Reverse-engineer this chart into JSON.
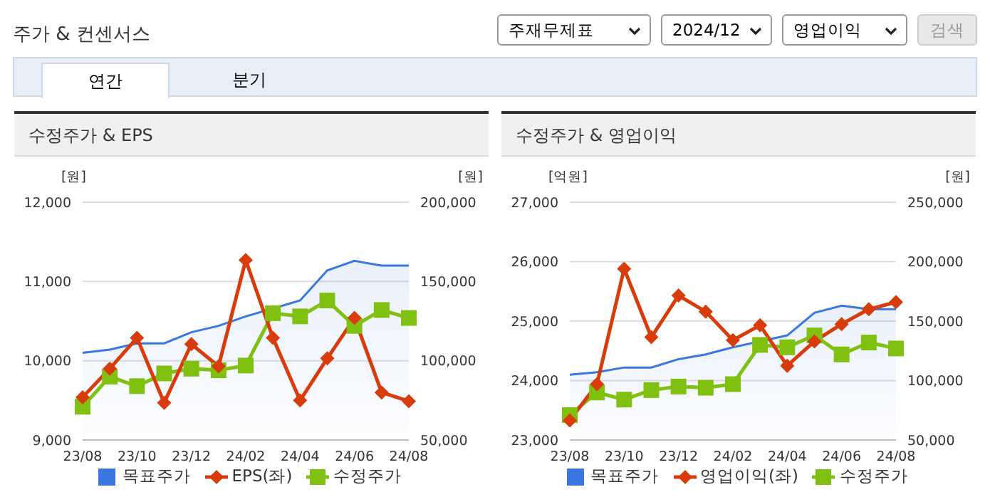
{
  "chart_data": [
    {
      "type": "other",
      "title": "주가 & 컨센서스",
      "annotations": [
        "주재무제표",
        "2024/12",
        "영업이익",
        "검색",
        "연간",
        "분기"
      ]
    },
    {
      "type": "line",
      "title": "수정주가 & EPS",
      "ylabel": "[원]",
      "y2label": "[원]",
      "categories": [
        "23/08",
        null,
        "23/10",
        null,
        "23/12",
        null,
        "24/02",
        null,
        "24/04",
        null,
        "24/06",
        null,
        "24/08"
      ],
      "series": [
        {
          "name": "목표주가",
          "type": "area",
          "axis": "y2",
          "color": "#3a78e0",
          "marker": "none",
          "values": [
            105000,
            107000,
            111000,
            111000,
            118000,
            122000,
            128000,
            133000,
            138000,
            157000,
            163000,
            160000,
            160000
          ]
        },
        {
          "name": "EPS(좌)",
          "type": "line",
          "color": "#d83c0c",
          "marker": "diamond",
          "values": [
            9540,
            9900,
            10290,
            9470,
            10210,
            9930,
            11270,
            10290,
            9500,
            10030,
            10540,
            9600,
            9490
          ]
        },
        {
          "name": "수정주가",
          "type": "line",
          "axis": "y2",
          "color": "#80c010",
          "marker": "square",
          "values": [
            71000,
            90000,
            84000,
            92000,
            95000,
            94000,
            97000,
            130000,
            128000,
            138000,
            122000,
            132000,
            127000
          ]
        }
      ],
      "ylim": [
        9000,
        12000
      ],
      "yticks": [
        {
          "value": 9000,
          "label": "9,000"
        },
        {
          "value": 10000,
          "label": "10,000"
        },
        {
          "value": 11000,
          "label": "11,000"
        },
        {
          "value": 12000,
          "label": "12,000"
        }
      ],
      "y2lim": [
        50000,
        200000
      ],
      "y2ticks": [
        {
          "value": 50000,
          "label": "50,000"
        },
        {
          "value": 100000,
          "label": "100,000"
        },
        {
          "value": 150000,
          "label": "150,000"
        },
        {
          "value": 200000,
          "label": "200,000"
        }
      ],
      "grid": "y",
      "legend": "bottom"
    },
    {
      "type": "line",
      "title": "수정주가 & 영업이익",
      "ylabel": "[억원]",
      "y2label": "[원]",
      "categories": [
        "23/08",
        null,
        "23/10",
        null,
        "23/12",
        null,
        "24/02",
        null,
        "24/04",
        null,
        "24/06",
        null,
        "24/08"
      ],
      "series": [
        {
          "name": "목표주가",
          "type": "area",
          "axis": "y2",
          "color": "#3a78e0",
          "marker": "none",
          "values": [
            105000,
            107000,
            111000,
            111000,
            118000,
            122000,
            128000,
            133000,
            138000,
            157000,
            163000,
            160000,
            160000
          ]
        },
        {
          "name": "영업이익(좌)",
          "type": "line",
          "color": "#d83c0c",
          "marker": "diamond",
          "values": [
            23330,
            23940,
            25880,
            24730,
            25430,
            25160,
            24680,
            24930,
            24250,
            24660,
            24950,
            25200,
            25320
          ]
        },
        {
          "name": "수정주가",
          "type": "line",
          "axis": "y2",
          "color": "#80c010",
          "marker": "square",
          "values": [
            71000,
            90000,
            84000,
            92000,
            95000,
            94000,
            97000,
            130000,
            128000,
            138000,
            122000,
            132000,
            127000
          ]
        }
      ],
      "ylim": [
        23000,
        27000
      ],
      "yticks": [
        {
          "value": 23000,
          "label": "23,000"
        },
        {
          "value": 24000,
          "label": "24,000"
        },
        {
          "value": 25000,
          "label": "25,000"
        },
        {
          "value": 26000,
          "label": "26,000"
        },
        {
          "value": 27000,
          "label": "27,000"
        }
      ],
      "y2lim": [
        50000,
        250000
      ],
      "y2ticks": [
        {
          "value": 50000,
          "label": "50,000"
        },
        {
          "value": 100000,
          "label": "100,000"
        },
        {
          "value": 150000,
          "label": "150,000"
        },
        {
          "value": 200000,
          "label": "200,000"
        },
        {
          "value": 250000,
          "label": "250,000"
        }
      ],
      "grid": "y",
      "legend": "bottom"
    }
  ]
}
